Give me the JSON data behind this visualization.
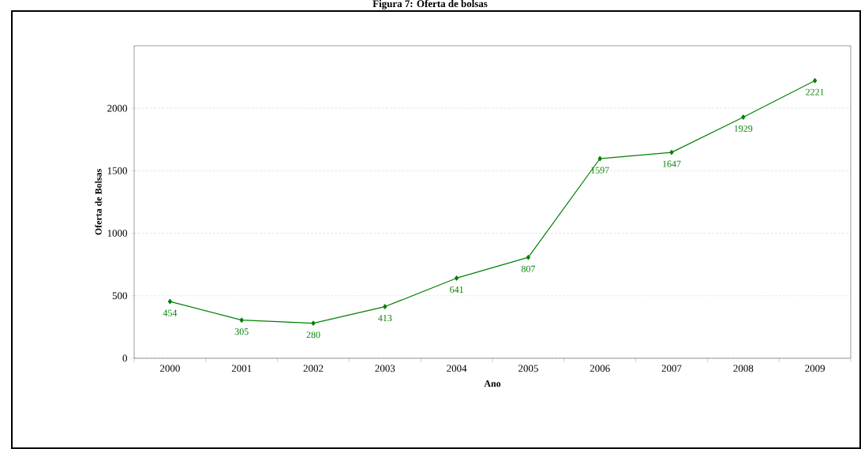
{
  "chart_data": {
    "type": "line",
    "title": "Figura 7: Oferta de bolsas",
    "xlabel": "Ano",
    "ylabel": "Oferta de Bolsas",
    "categories": [
      "2000",
      "2001",
      "2002",
      "2003",
      "2004",
      "2005",
      "2006",
      "2007",
      "2008",
      "2009"
    ],
    "values": [
      454,
      305,
      280,
      413,
      641,
      807,
      1597,
      1647,
      1929,
      2221
    ],
    "color": "#008000",
    "marker": "diamond",
    "line_style": "solid",
    "data_labels": true,
    "ylim": [
      0,
      2500
    ],
    "yticks": [
      0,
      500,
      1000,
      1500,
      2000
    ],
    "grid": "y"
  }
}
